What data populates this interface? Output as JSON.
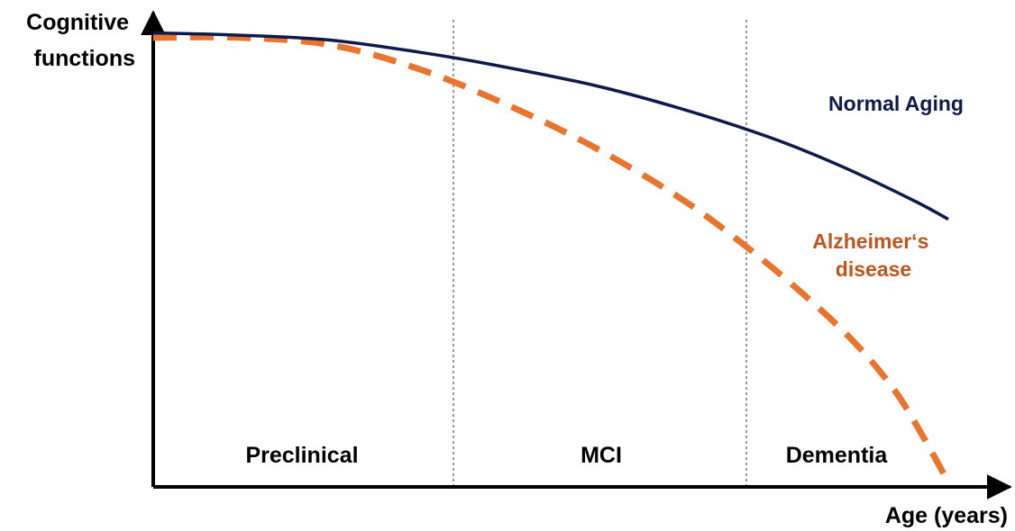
{
  "chart_data": {
    "type": "line",
    "ylabel_lines": [
      "Cognitive",
      "functions"
    ],
    "xlabel": "Age (years)",
    "stages": [
      {
        "label": "Preclinical"
      },
      {
        "label": "MCI"
      },
      {
        "label": "Dementia"
      }
    ],
    "series": [
      {
        "name_lines": [
          "Normal Aging"
        ],
        "color": "#0d1a4a",
        "style": "solid",
        "points": [
          [
            0,
            0.95
          ],
          [
            0.1,
            0.945
          ],
          [
            0.2,
            0.935
          ],
          [
            0.3,
            0.91
          ],
          [
            0.38,
            0.885
          ],
          [
            0.5,
            0.84
          ],
          [
            0.6,
            0.79
          ],
          [
            0.7,
            0.73
          ],
          [
            0.78,
            0.67
          ],
          [
            0.86,
            0.6
          ],
          [
            0.9,
            0.56
          ]
        ]
      },
      {
        "name_lines": [
          "Alzheimer‘s",
          "disease"
        ],
        "color": "#e8742e",
        "style": "dashed",
        "points": [
          [
            0,
            0.94
          ],
          [
            0.1,
            0.94
          ],
          [
            0.2,
            0.925
          ],
          [
            0.3,
            0.875
          ],
          [
            0.4,
            0.8
          ],
          [
            0.5,
            0.71
          ],
          [
            0.6,
            0.6
          ],
          [
            0.68,
            0.49
          ],
          [
            0.75,
            0.38
          ],
          [
            0.8,
            0.29
          ],
          [
            0.84,
            0.2
          ],
          [
            0.87,
            0.11
          ],
          [
            0.9,
            0.01
          ]
        ]
      }
    ],
    "grid": false,
    "legend": "direct labels"
  }
}
